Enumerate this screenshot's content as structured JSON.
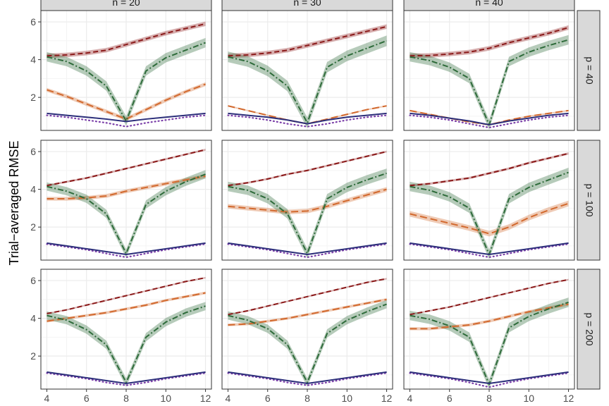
{
  "chart_data": {
    "type": "line",
    "ylabel": "Trial−averaged RMSE",
    "xlabel": "",
    "x": [
      4,
      5,
      6,
      7,
      8,
      9,
      10,
      11,
      12
    ],
    "x_ticks": [
      "4",
      "6",
      "8",
      "10",
      "12"
    ],
    "y_ticks": [
      "2",
      "4",
      "6"
    ],
    "xlim": [
      3.7,
      12.3
    ],
    "ylim": [
      0.25,
      6.6
    ],
    "col_strips": [
      "n = 20",
      "n = 30",
      "n = 40"
    ],
    "row_strips": [
      "p = 40",
      "p = 100",
      "p = 200"
    ],
    "grid": true,
    "colors": {
      "dark_red": "#8b1a1a",
      "orange": "#d2692e",
      "green": "#2e6b3a",
      "navy": "#2c2f7a",
      "purple": "#7a3ea8",
      "strip_bg": "#d9d9d9",
      "grid": "#ebebeb",
      "panel_border": "#333333"
    },
    "panels": [
      {
        "row": 0,
        "col": 0,
        "series": [
          {
            "key": "dark_red",
            "values": [
              4.2,
              4.25,
              4.35,
              4.5,
              4.8,
              5.1,
              5.4,
              5.65,
              5.9
            ],
            "band": 0.12
          },
          {
            "key": "orange",
            "values": [
              2.4,
              2.05,
              1.65,
              1.25,
              0.85,
              1.35,
              1.85,
              2.3,
              2.7
            ],
            "band": 0.1
          },
          {
            "key": "green",
            "values": [
              4.15,
              3.9,
              3.4,
              2.6,
              0.75,
              3.4,
              4.1,
              4.5,
              4.9
            ],
            "band": 0.25
          },
          {
            "key": "navy",
            "values": [
              1.15,
              1.05,
              0.95,
              0.85,
              0.72,
              0.85,
              0.95,
              1.05,
              1.15
            ],
            "band": 0.03
          },
          {
            "key": "purple",
            "values": [
              1.05,
              0.95,
              0.8,
              0.65,
              0.45,
              0.65,
              0.8,
              0.95,
              1.05
            ],
            "band": 0
          }
        ]
      },
      {
        "row": 0,
        "col": 1,
        "series": [
          {
            "key": "dark_red",
            "values": [
              4.2,
              4.25,
              4.35,
              4.5,
              4.75,
              5.0,
              5.25,
              5.5,
              5.75
            ],
            "band": 0.12
          },
          {
            "key": "orange",
            "values": [
              1.55,
              1.3,
              1.05,
              0.8,
              0.6,
              0.85,
              1.1,
              1.35,
              1.55
            ],
            "band": 0.04
          },
          {
            "key": "green",
            "values": [
              4.15,
              3.9,
              3.4,
              2.6,
              0.65,
              3.6,
              4.2,
              4.6,
              5.0
            ],
            "band": 0.28
          },
          {
            "key": "navy",
            "values": [
              1.15,
              1.05,
              0.95,
              0.8,
              0.6,
              0.8,
              0.95,
              1.05,
              1.15
            ],
            "band": 0.03
          },
          {
            "key": "purple",
            "values": [
              1.05,
              0.95,
              0.8,
              0.6,
              0.45,
              0.6,
              0.8,
              0.95,
              1.05
            ],
            "band": 0
          }
        ]
      },
      {
        "row": 0,
        "col": 2,
        "series": [
          {
            "key": "dark_red",
            "values": [
              4.2,
              4.22,
              4.3,
              4.4,
              4.6,
              4.9,
              5.15,
              5.4,
              5.7
            ],
            "band": 0.12
          },
          {
            "key": "orange",
            "values": [
              1.3,
              1.1,
              0.9,
              0.7,
              0.55,
              0.8,
              1.0,
              1.15,
              1.3
            ],
            "band": 0.04
          },
          {
            "key": "green",
            "values": [
              4.15,
              3.95,
              3.6,
              3.0,
              0.55,
              3.9,
              4.4,
              4.75,
              5.05
            ],
            "band": 0.25
          },
          {
            "key": "navy",
            "values": [
              1.15,
              1.05,
              0.9,
              0.75,
              0.55,
              0.75,
              0.9,
              1.05,
              1.15
            ],
            "band": 0.03
          },
          {
            "key": "purple",
            "values": [
              1.05,
              0.95,
              0.8,
              0.6,
              0.4,
              0.6,
              0.8,
              0.95,
              1.05
            ],
            "band": 0
          }
        ]
      },
      {
        "row": 1,
        "col": 0,
        "series": [
          {
            "key": "dark_red",
            "values": [
              4.2,
              4.4,
              4.6,
              4.85,
              5.1,
              5.35,
              5.6,
              5.85,
              6.1
            ],
            "band": 0.05
          },
          {
            "key": "orange",
            "values": [
              3.5,
              3.5,
              3.55,
              3.65,
              3.9,
              4.1,
              4.3,
              4.5,
              4.7
            ],
            "band": 0.1
          },
          {
            "key": "green",
            "values": [
              4.15,
              3.9,
              3.5,
              2.7,
              0.6,
              3.2,
              3.9,
              4.4,
              4.8
            ],
            "band": 0.22
          },
          {
            "key": "navy",
            "values": [
              1.15,
              1.0,
              0.85,
              0.7,
              0.55,
              0.7,
              0.85,
              1.0,
              1.15
            ],
            "band": 0.03
          },
          {
            "key": "purple",
            "values": [
              1.1,
              0.95,
              0.8,
              0.6,
              0.4,
              0.6,
              0.8,
              0.95,
              1.1
            ],
            "band": 0
          }
        ]
      },
      {
        "row": 1,
        "col": 1,
        "series": [
          {
            "key": "dark_red",
            "values": [
              4.2,
              4.35,
              4.55,
              4.8,
              5.0,
              5.25,
              5.5,
              5.75,
              6.0
            ],
            "band": 0.05
          },
          {
            "key": "orange",
            "values": [
              3.1,
              3.0,
              2.9,
              2.8,
              2.85,
              3.1,
              3.4,
              3.7,
              4.0
            ],
            "band": 0.12
          },
          {
            "key": "green",
            "values": [
              4.15,
              3.95,
              3.5,
              2.7,
              0.6,
              3.5,
              4.1,
              4.5,
              4.85
            ],
            "band": 0.25
          },
          {
            "key": "navy",
            "values": [
              1.15,
              1.0,
              0.85,
              0.7,
              0.55,
              0.7,
              0.85,
              1.0,
              1.15
            ],
            "band": 0.03
          },
          {
            "key": "purple",
            "values": [
              1.1,
              0.95,
              0.8,
              0.6,
              0.4,
              0.6,
              0.8,
              0.95,
              1.1
            ],
            "band": 0
          }
        ]
      },
      {
        "row": 1,
        "col": 2,
        "series": [
          {
            "key": "dark_red",
            "values": [
              4.2,
              4.3,
              4.45,
              4.6,
              4.85,
              5.1,
              5.4,
              5.65,
              5.9
            ],
            "band": 0.06
          },
          {
            "key": "orange",
            "values": [
              2.7,
              2.45,
              2.2,
              1.95,
              1.65,
              2.0,
              2.5,
              2.9,
              3.25
            ],
            "band": 0.15
          },
          {
            "key": "green",
            "values": [
              4.15,
              3.95,
              3.6,
              3.0,
              0.55,
              3.5,
              4.1,
              4.5,
              4.9
            ],
            "band": 0.25
          },
          {
            "key": "navy",
            "values": [
              1.15,
              1.0,
              0.85,
              0.7,
              0.55,
              0.7,
              0.85,
              1.0,
              1.15
            ],
            "band": 0.03
          },
          {
            "key": "purple",
            "values": [
              1.1,
              0.95,
              0.8,
              0.6,
              0.4,
              0.6,
              0.8,
              0.95,
              1.1
            ],
            "band": 0
          }
        ]
      },
      {
        "row": 2,
        "col": 0,
        "series": [
          {
            "key": "dark_red",
            "values": [
              4.25,
              4.45,
              4.7,
              4.95,
              5.2,
              5.45,
              5.7,
              5.95,
              6.15
            ],
            "band": 0.04
          },
          {
            "key": "orange",
            "values": [
              3.85,
              4.0,
              4.15,
              4.3,
              4.5,
              4.7,
              4.95,
              5.15,
              5.35
            ],
            "band": 0.07
          },
          {
            "key": "green",
            "values": [
              4.15,
              3.9,
              3.4,
              2.6,
              0.6,
              3.0,
              3.8,
              4.3,
              4.65
            ],
            "band": 0.22
          },
          {
            "key": "navy",
            "values": [
              1.15,
              1.0,
              0.85,
              0.7,
              0.55,
              0.7,
              0.85,
              1.0,
              1.15
            ],
            "band": 0.03
          },
          {
            "key": "purple",
            "values": [
              1.1,
              0.95,
              0.8,
              0.6,
              0.45,
              0.6,
              0.8,
              0.95,
              1.1
            ],
            "band": 0
          }
        ]
      },
      {
        "row": 2,
        "col": 1,
        "series": [
          {
            "key": "dark_red",
            "values": [
              4.2,
              4.4,
              4.65,
              4.9,
              5.15,
              5.4,
              5.65,
              5.9,
              6.1
            ],
            "band": 0.04
          },
          {
            "key": "orange",
            "values": [
              3.65,
              3.7,
              3.85,
              4.0,
              4.2,
              4.4,
              4.6,
              4.8,
              5.0
            ],
            "band": 0.07
          },
          {
            "key": "green",
            "values": [
              4.15,
              3.9,
              3.45,
              2.6,
              0.6,
              3.2,
              3.9,
              4.35,
              4.75
            ],
            "band": 0.22
          },
          {
            "key": "navy",
            "values": [
              1.15,
              1.0,
              0.85,
              0.7,
              0.55,
              0.7,
              0.85,
              1.0,
              1.15
            ],
            "band": 0.03
          },
          {
            "key": "purple",
            "values": [
              1.1,
              0.95,
              0.8,
              0.6,
              0.45,
              0.6,
              0.8,
              0.95,
              1.1
            ],
            "band": 0
          }
        ]
      },
      {
        "row": 2,
        "col": 2,
        "series": [
          {
            "key": "dark_red",
            "values": [
              4.2,
              4.4,
              4.6,
              4.85,
              5.1,
              5.35,
              5.6,
              5.85,
              6.05
            ],
            "band": 0.04
          },
          {
            "key": "orange",
            "values": [
              3.45,
              3.45,
              3.55,
              3.65,
              3.85,
              4.1,
              4.35,
              4.55,
              4.75
            ],
            "band": 0.08
          },
          {
            "key": "green",
            "values": [
              4.15,
              3.95,
              3.6,
              3.0,
              0.5,
              3.5,
              4.1,
              4.5,
              4.85
            ],
            "band": 0.25
          },
          {
            "key": "navy",
            "values": [
              1.15,
              1.0,
              0.85,
              0.7,
              0.55,
              0.7,
              0.85,
              1.0,
              1.15
            ],
            "band": 0.03
          },
          {
            "key": "purple",
            "values": [
              1.1,
              0.95,
              0.8,
              0.6,
              0.35,
              0.6,
              0.8,
              0.95,
              1.1
            ],
            "band": 0
          }
        ]
      }
    ]
  }
}
